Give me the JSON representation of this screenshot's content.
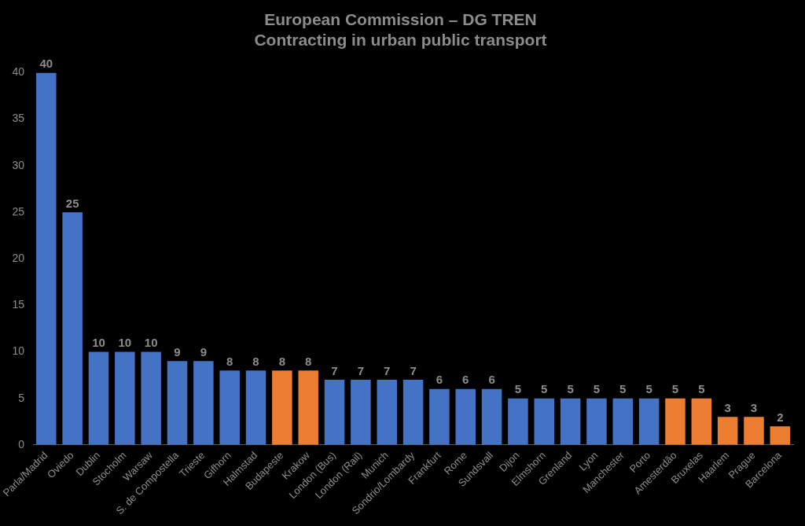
{
  "chart_data": {
    "type": "bar",
    "title": [
      "European Commission – DG TREN",
      "Contracting in urban public transport"
    ],
    "categories": [
      "Parla/Madrid",
      "Oviedo",
      "Dublin",
      "Stocholm",
      "Warsaw",
      "S. de Compostella",
      "Trieste",
      "Gifhorn",
      "Halmstad",
      "Budapeste",
      "Krakow",
      "London (Bus)",
      "London (Rail)",
      "Munich",
      "Sondrio/Lombardy",
      "Frankfurt",
      "Rome",
      "Sundsvall",
      "Dijon",
      "Elmshorn",
      "Grenland",
      "Lyon",
      "Manchester",
      "Porto",
      "Amesterdão",
      "Bruxelas",
      "Haarlem",
      "Prague",
      "Barcelona"
    ],
    "values": [
      40,
      25,
      10,
      10,
      10,
      9,
      9,
      8,
      8,
      8,
      8,
      7,
      7,
      7,
      7,
      6,
      6,
      6,
      5,
      5,
      5,
      5,
      5,
      5,
      5,
      5,
      3,
      3,
      2
    ],
    "colors": [
      "#4472c4",
      "#4472c4",
      "#4472c4",
      "#4472c4",
      "#4472c4",
      "#4472c4",
      "#4472c4",
      "#4472c4",
      "#4472c4",
      "#ed7d31",
      "#ed7d31",
      "#4472c4",
      "#4472c4",
      "#4472c4",
      "#4472c4",
      "#4472c4",
      "#4472c4",
      "#4472c4",
      "#4472c4",
      "#4472c4",
      "#4472c4",
      "#4472c4",
      "#4472c4",
      "#4472c4",
      "#ed7d31",
      "#ed7d31",
      "#ed7d31",
      "#ed7d31",
      "#ed7d31"
    ],
    "ylim": [
      0,
      40
    ],
    "yticks": [
      0,
      5,
      10,
      15,
      20,
      25,
      30,
      35,
      40
    ],
    "grid": false,
    "data_labels": true
  }
}
